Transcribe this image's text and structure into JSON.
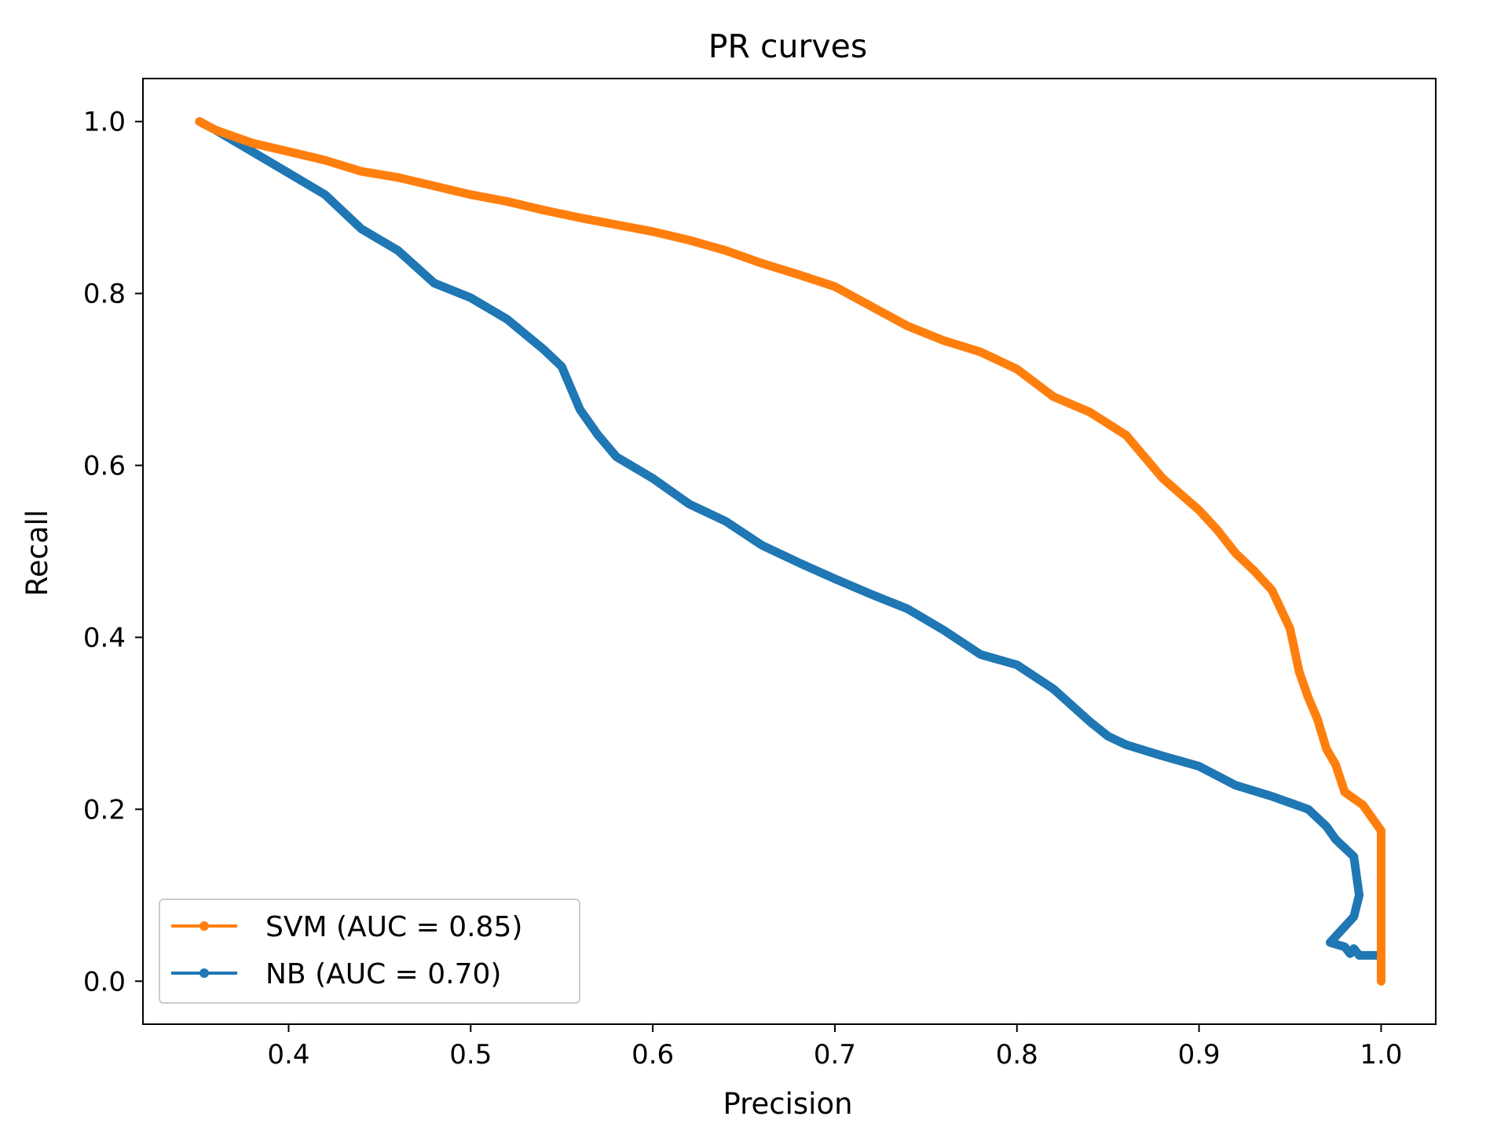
{
  "chart_data": {
    "type": "line",
    "title": "PR curves",
    "xlabel": "Precision",
    "ylabel": "Recall",
    "xlim": [
      0.32,
      1.03
    ],
    "ylim": [
      -0.05,
      1.05
    ],
    "xticks": [
      "0.4",
      "0.5",
      "0.6",
      "0.7",
      "0.8",
      "0.9",
      "1.0"
    ],
    "yticks": [
      "0.0",
      "0.2",
      "0.4",
      "0.6",
      "0.8",
      "1.0"
    ],
    "grid": false,
    "legend_position": "lower-left",
    "series": [
      {
        "name": "SVM (AUC = 0.85)",
        "color": "#ff7f0e",
        "points": [
          [
            0.351,
            1.0
          ],
          [
            0.36,
            0.99
          ],
          [
            0.38,
            0.975
          ],
          [
            0.4,
            0.965
          ],
          [
            0.42,
            0.955
          ],
          [
            0.44,
            0.942
          ],
          [
            0.46,
            0.935
          ],
          [
            0.48,
            0.925
          ],
          [
            0.5,
            0.915
          ],
          [
            0.52,
            0.907
          ],
          [
            0.54,
            0.897
          ],
          [
            0.56,
            0.888
          ],
          [
            0.58,
            0.88
          ],
          [
            0.6,
            0.872
          ],
          [
            0.62,
            0.862
          ],
          [
            0.64,
            0.85
          ],
          [
            0.66,
            0.835
          ],
          [
            0.68,
            0.822
          ],
          [
            0.7,
            0.808
          ],
          [
            0.72,
            0.785
          ],
          [
            0.74,
            0.762
          ],
          [
            0.76,
            0.745
          ],
          [
            0.78,
            0.732
          ],
          [
            0.8,
            0.712
          ],
          [
            0.82,
            0.68
          ],
          [
            0.84,
            0.662
          ],
          [
            0.86,
            0.635
          ],
          [
            0.88,
            0.585
          ],
          [
            0.9,
            0.548
          ],
          [
            0.91,
            0.525
          ],
          [
            0.92,
            0.498
          ],
          [
            0.93,
            0.478
          ],
          [
            0.94,
            0.455
          ],
          [
            0.95,
            0.41
          ],
          [
            0.955,
            0.36
          ],
          [
            0.96,
            0.33
          ],
          [
            0.965,
            0.305
          ],
          [
            0.97,
            0.27
          ],
          [
            0.975,
            0.252
          ],
          [
            0.98,
            0.22
          ],
          [
            0.99,
            0.205
          ],
          [
            1.0,
            0.175
          ],
          [
            1.0,
            0.0
          ]
        ]
      },
      {
        "name": "NB (AUC = 0.70)",
        "color": "#1f77b4",
        "points": [
          [
            0.351,
            1.0
          ],
          [
            0.36,
            0.99
          ],
          [
            0.38,
            0.965
          ],
          [
            0.4,
            0.94
          ],
          [
            0.42,
            0.915
          ],
          [
            0.44,
            0.875
          ],
          [
            0.46,
            0.85
          ],
          [
            0.48,
            0.812
          ],
          [
            0.5,
            0.795
          ],
          [
            0.52,
            0.77
          ],
          [
            0.54,
            0.735
          ],
          [
            0.55,
            0.715
          ],
          [
            0.56,
            0.665
          ],
          [
            0.57,
            0.635
          ],
          [
            0.58,
            0.61
          ],
          [
            0.6,
            0.585
          ],
          [
            0.62,
            0.555
          ],
          [
            0.64,
            0.535
          ],
          [
            0.66,
            0.507
          ],
          [
            0.68,
            0.487
          ],
          [
            0.7,
            0.468
          ],
          [
            0.72,
            0.45
          ],
          [
            0.74,
            0.433
          ],
          [
            0.76,
            0.408
          ],
          [
            0.78,
            0.38
          ],
          [
            0.8,
            0.368
          ],
          [
            0.82,
            0.34
          ],
          [
            0.84,
            0.302
          ],
          [
            0.85,
            0.285
          ],
          [
            0.86,
            0.275
          ],
          [
            0.88,
            0.262
          ],
          [
            0.9,
            0.25
          ],
          [
            0.92,
            0.228
          ],
          [
            0.94,
            0.215
          ],
          [
            0.96,
            0.2
          ],
          [
            0.97,
            0.18
          ],
          [
            0.975,
            0.165
          ],
          [
            0.98,
            0.155
          ],
          [
            0.985,
            0.145
          ],
          [
            0.988,
            0.1
          ],
          [
            0.985,
            0.075
          ],
          [
            0.975,
            0.052
          ],
          [
            0.972,
            0.045
          ],
          [
            0.98,
            0.04
          ],
          [
            0.983,
            0.032
          ],
          [
            0.985,
            0.038
          ],
          [
            0.988,
            0.03
          ],
          [
            1.0,
            0.03
          ]
        ]
      }
    ]
  }
}
